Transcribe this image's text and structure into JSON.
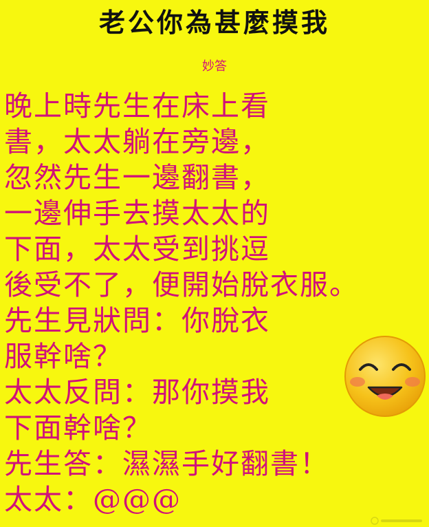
{
  "title": "老公你為甚麼摸我",
  "subtitle": "妙答",
  "story_lines": [
    "晚上時先生在床上看",
    "書，太太躺在旁邊，",
    "忽然先生一邊翻書，",
    "一邊伸手去摸太太的",
    "下面，太太受到挑逗",
    "後受不了，便開始脫衣服。",
    "先生見狀問：你脫衣",
    "服幹啥？",
    "太太反問：那你摸我",
    "下面幹啥？",
    "先生答：濕濕手好翻書！",
    "太太：@@@"
  ],
  "colors": {
    "background": "#f7f70f",
    "title_text": "#111111",
    "body_text": "#d0117a",
    "smiley_face": "#f6c21a",
    "smiley_cheek": "#f07a4a"
  },
  "icons": {
    "smiley": "smiley-face-icon"
  }
}
